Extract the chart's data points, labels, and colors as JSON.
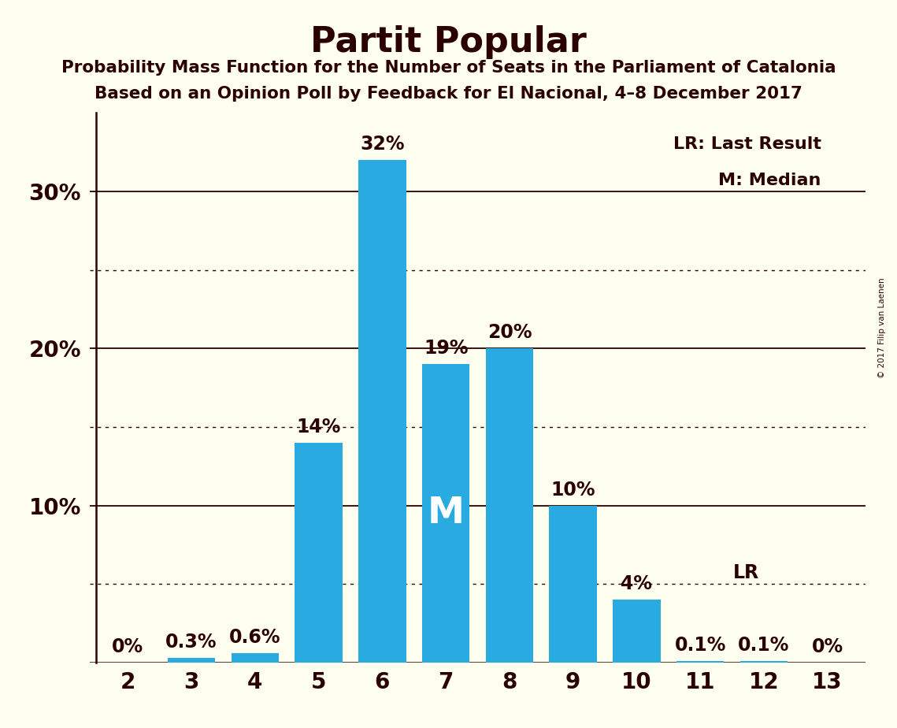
{
  "title": "Partit Popular",
  "subtitle1": "Probability Mass Function for the Number of Seats in the Parliament of Catalonia",
  "subtitle2": "Based on an Opinion Poll by Feedback for El Nacional, 4–8 December 2017",
  "copyright": "© 2017 Filip van Laenen",
  "categories": [
    2,
    3,
    4,
    5,
    6,
    7,
    8,
    9,
    10,
    11,
    12,
    13
  ],
  "values": [
    0.0,
    0.3,
    0.6,
    14.0,
    32.0,
    19.0,
    20.0,
    10.0,
    4.0,
    0.1,
    0.1,
    0.0
  ],
  "bar_color": "#29ABE2",
  "background_color": "#FFFFF0",
  "text_color": "#2B0000",
  "ylim": [
    0,
    35
  ],
  "median_seat": 7,
  "last_result_seat": 11,
  "median_label": "M",
  "lr_label": "LR",
  "legend_lr": "LR: Last Result",
  "legend_m": "M: Median",
  "dotted_lines": [
    5.0,
    15.0,
    25.0
  ],
  "solid_lines": [
    0,
    10,
    20,
    30
  ],
  "solid_line_color": "#2B0000",
  "dotted_line_color": "#2B0000"
}
